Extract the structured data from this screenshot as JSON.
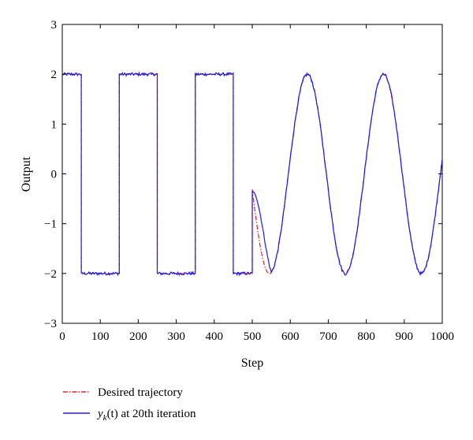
{
  "chart_data": {
    "type": "line",
    "xlabel": "Step",
    "ylabel": "Output",
    "xlim": [
      0,
      1000
    ],
    "ylim": [
      -3,
      3
    ],
    "xticks": [
      0,
      100,
      200,
      300,
      400,
      500,
      600,
      700,
      800,
      900,
      1000
    ],
    "xtick_labels": [
      "0",
      "100",
      "200",
      "300",
      "400",
      "500",
      "600",
      "700",
      "800",
      "900",
      "1000"
    ],
    "yticks": [
      3,
      2,
      1,
      0,
      -1,
      -2,
      -3
    ],
    "ytick_labels": [
      "3",
      "2",
      "1",
      "0",
      "−1",
      "−2",
      "−3"
    ],
    "grid": false,
    "legend_position": "bottom",
    "series": [
      {
        "name": "Desired trajectory",
        "color": "#e8232a",
        "style": "dash-dot",
        "segments": [
          {
            "kind": "square",
            "x_start": 0,
            "x_end": 500,
            "period": 200,
            "high": 2,
            "low": -2,
            "initial_high_until": 50
          },
          {
            "kind": "sine",
            "x_start": 500,
            "x_end": 1000,
            "amplitude": 2,
            "period": 200,
            "peak_x": 645
          }
        ]
      },
      {
        "name_prefix": "y",
        "name_subscript": "k",
        "name_arg": "(t)",
        "name_suffix": " at 20th iteration",
        "color": "#1c1ce6",
        "style": "solid",
        "segments": [
          {
            "kind": "square",
            "x_start": 0,
            "x_end": 500,
            "period": 200,
            "high": 2,
            "low": -2,
            "initial_high_until": 50
          },
          {
            "kind": "sine",
            "x_start": 500,
            "x_end": 1000,
            "amplitude": 2,
            "period": 200,
            "peak_x": 645,
            "start_value": -0.35,
            "end_value": 0.25
          }
        ]
      }
    ]
  }
}
